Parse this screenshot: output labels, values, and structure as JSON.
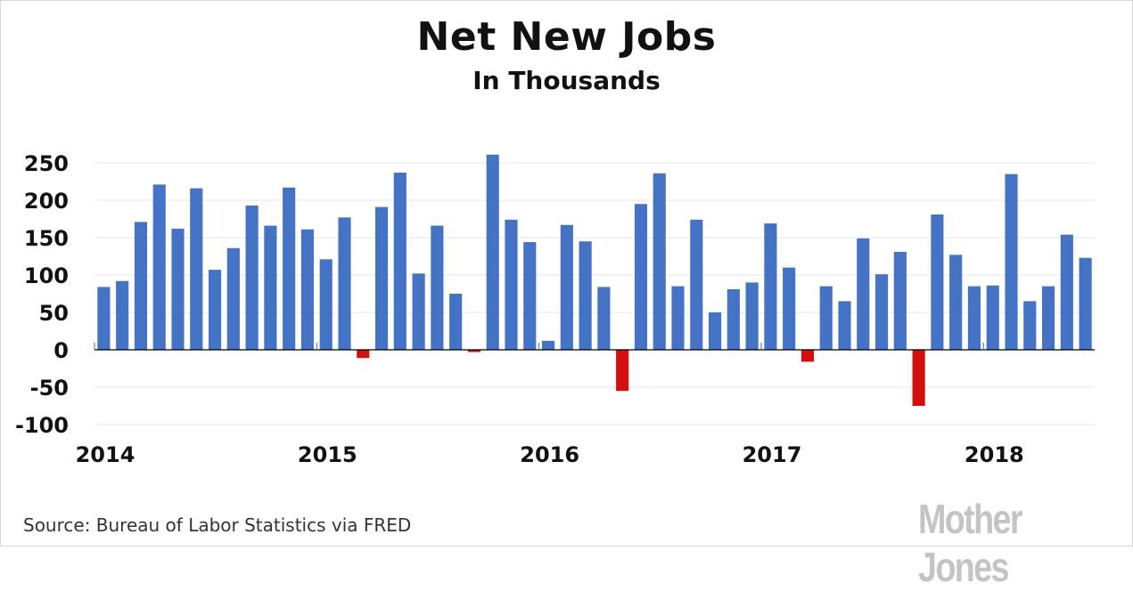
{
  "chart_data": {
    "type": "bar",
    "title": "Net New Jobs",
    "subtitle": "In Thousands",
    "source": "Source: Bureau of Labor Statistics via FRED",
    "brand": "Mother Jones",
    "ylim": [
      -100,
      250
    ],
    "yticks": [
      250,
      200,
      150,
      100,
      50,
      0,
      -50,
      -100
    ],
    "x_labels": [
      "2014",
      "2015",
      "2016",
      "2017",
      "2018"
    ],
    "grid": true,
    "colors": {
      "positive": "#4472c4",
      "negative": "#d40f0f"
    },
    "values": [
      84,
      92,
      171,
      221,
      162,
      216,
      107,
      136,
      193,
      166,
      217,
      161,
      121,
      177,
      -11,
      191,
      237,
      102,
      166,
      75,
      -3,
      261,
      174,
      144,
      12,
      167,
      145,
      84,
      -55,
      195,
      236,
      85,
      174,
      50,
      81,
      90,
      169,
      110,
      -16,
      85,
      65,
      149,
      101,
      131,
      -75,
      181,
      127,
      85,
      86,
      235,
      65,
      85,
      154,
      123
    ]
  }
}
